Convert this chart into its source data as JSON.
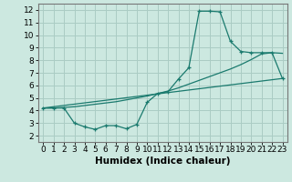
{
  "xlabel": "Humidex (Indice chaleur)",
  "background_color": "#cce8e0",
  "grid_color": "#aaccc4",
  "line_color": "#1a7a6e",
  "xlim": [
    -0.5,
    23.5
  ],
  "ylim": [
    1.5,
    12.5
  ],
  "xticks": [
    0,
    1,
    2,
    3,
    4,
    5,
    6,
    7,
    8,
    9,
    10,
    11,
    12,
    13,
    14,
    15,
    16,
    17,
    18,
    19,
    20,
    21,
    22,
    23
  ],
  "yticks": [
    2,
    3,
    4,
    5,
    6,
    7,
    8,
    9,
    10,
    11,
    12
  ],
  "line1_x": [
    0,
    1,
    2,
    3,
    4,
    5,
    6,
    7,
    8,
    9,
    10,
    11,
    12,
    13,
    14,
    15,
    16,
    17,
    18,
    19,
    20,
    21,
    22,
    23
  ],
  "line1_y": [
    4.2,
    4.2,
    4.2,
    3.0,
    2.7,
    2.5,
    2.8,
    2.8,
    2.55,
    2.9,
    4.65,
    5.35,
    5.5,
    6.5,
    7.4,
    11.9,
    11.9,
    11.85,
    9.5,
    8.7,
    8.6,
    8.6,
    8.6,
    6.55
  ],
  "line2_x": [
    0,
    1,
    2,
    3,
    4,
    5,
    6,
    7,
    8,
    9,
    10,
    11,
    12,
    13,
    14,
    15,
    16,
    17,
    18,
    19,
    20,
    21,
    22,
    23
  ],
  "line2_y": [
    4.2,
    4.2,
    4.25,
    4.3,
    4.4,
    4.5,
    4.6,
    4.7,
    4.85,
    5.0,
    5.15,
    5.35,
    5.55,
    5.8,
    6.1,
    6.4,
    6.7,
    7.0,
    7.3,
    7.65,
    8.05,
    8.5,
    8.6,
    8.55
  ],
  "line3_x": [
    0,
    23
  ],
  "line3_y": [
    4.2,
    6.55
  ],
  "xlabel_fontsize": 7.5,
  "tick_fontsize": 6.5
}
